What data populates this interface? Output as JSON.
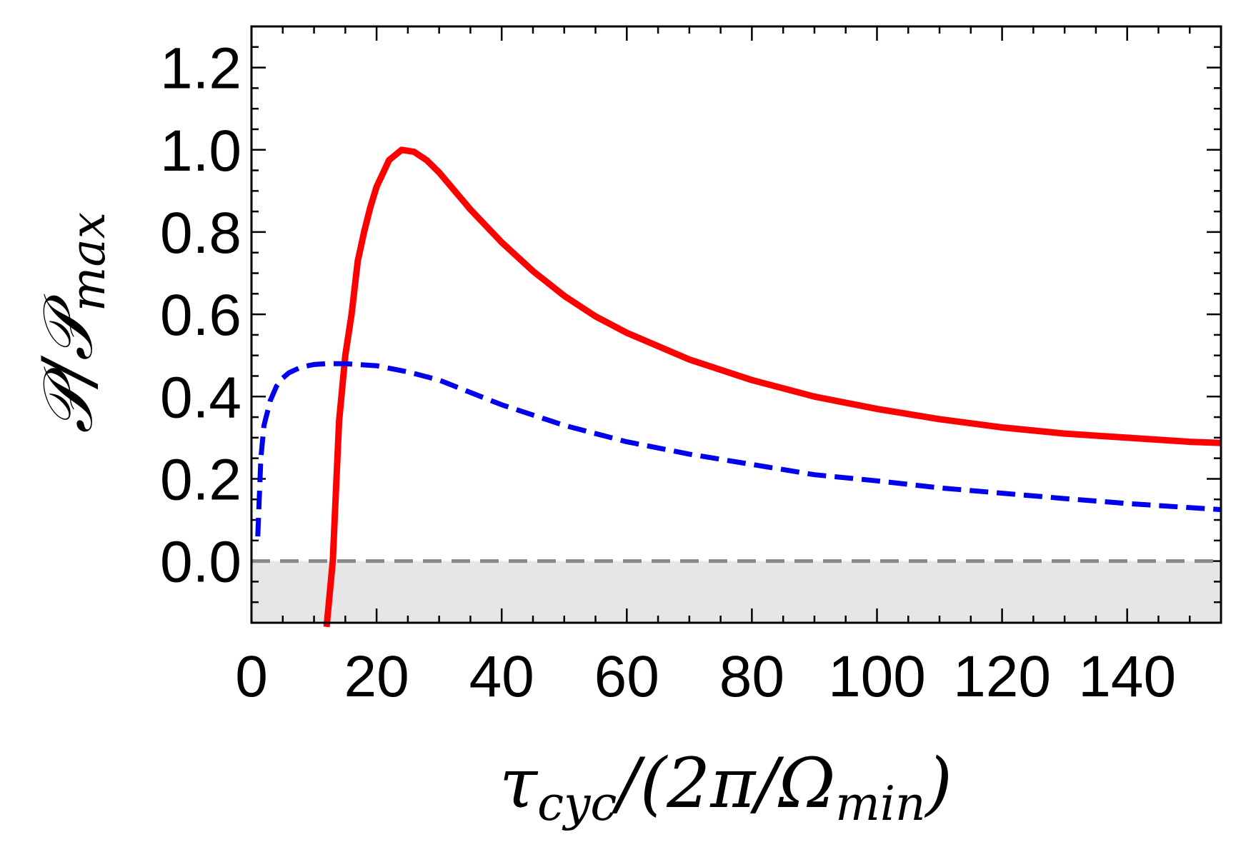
{
  "chart_data": {
    "type": "line",
    "title": "",
    "xlabel": {
      "base": "τ",
      "base_sub": "cyc",
      "mid": "/(2π/",
      "omega": "Ω",
      "omega_sub": "min",
      "end": ")"
    },
    "ylabel": {
      "p1": "𝒫",
      "slash": "/",
      "p2": "𝒫",
      "sub": "max"
    },
    "xlim": [
      0,
      155
    ],
    "ylim": [
      -0.15,
      1.3
    ],
    "x_ticks": [
      0,
      20,
      40,
      60,
      80,
      100,
      120,
      140
    ],
    "x_tick_labels": [
      "0",
      "20",
      "40",
      "60",
      "80",
      "100",
      "120",
      "140"
    ],
    "y_ticks": [
      0.0,
      0.2,
      0.4,
      0.6,
      0.8,
      1.0,
      1.2
    ],
    "y_tick_labels": [
      "0.0",
      "0.2",
      "0.4",
      "0.6",
      "0.8",
      "1.0",
      "1.2"
    ],
    "shaded_region": {
      "y_from": -0.15,
      "y_to": 0.0,
      "color": "#e6e6e6"
    },
    "reference_line": {
      "y": 0.0,
      "color": "#888888",
      "style": "dashed"
    },
    "series": [
      {
        "name": "red-solid",
        "color": "#ff0000",
        "style": "solid",
        "x": [
          12.0,
          13.0,
          14.0,
          15.0,
          16.0,
          17.0,
          18.0,
          19.0,
          20.0,
          22.0,
          24.0,
          26.0,
          28.0,
          30.0,
          35.0,
          40.0,
          45.0,
          50.0,
          55.0,
          60.0,
          70.0,
          80.0,
          90.0,
          100.0,
          110.0,
          120.0,
          130.0,
          140.0,
          150.0,
          155.0
        ],
        "y": [
          -0.16,
          0.0,
          0.34,
          0.5,
          0.6,
          0.73,
          0.8,
          0.86,
          0.91,
          0.975,
          1.0,
          0.995,
          0.975,
          0.945,
          0.855,
          0.775,
          0.705,
          0.645,
          0.595,
          0.555,
          0.49,
          0.44,
          0.4,
          0.37,
          0.345,
          0.325,
          0.31,
          0.3,
          0.29,
          0.287
        ]
      },
      {
        "name": "blue-dashed",
        "color": "#0000ee",
        "style": "dashed",
        "x": [
          1.0,
          1.5,
          2.0,
          3.0,
          4.0,
          5.0,
          6.0,
          8.0,
          10.0,
          12.0,
          15.0,
          20.0,
          25.0,
          30.0,
          40.0,
          50.0,
          60.0,
          70.0,
          80.0,
          90.0,
          100.0,
          110.0,
          120.0,
          130.0,
          140.0,
          150.0,
          155.0
        ],
        "y": [
          0.06,
          0.25,
          0.33,
          0.39,
          0.425,
          0.445,
          0.458,
          0.472,
          0.478,
          0.48,
          0.48,
          0.475,
          0.46,
          0.44,
          0.38,
          0.33,
          0.29,
          0.26,
          0.235,
          0.21,
          0.195,
          0.178,
          0.165,
          0.152,
          0.14,
          0.13,
          0.125
        ]
      }
    ]
  }
}
